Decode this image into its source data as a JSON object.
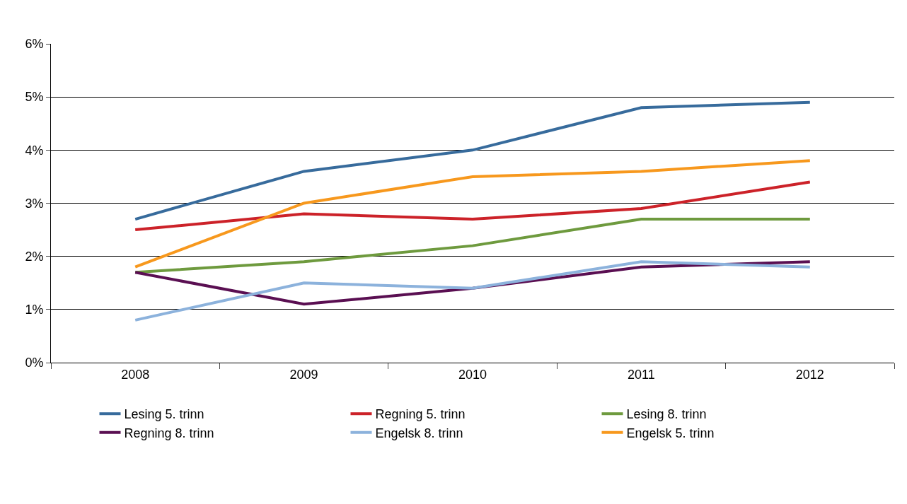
{
  "chart_data": {
    "type": "line",
    "categories": [
      "2008",
      "2009",
      "2010",
      "2011",
      "2012"
    ],
    "series": [
      {
        "name": "Lesing 5. trinn",
        "color": "#376b9c",
        "values": [
          2.7,
          3.6,
          4.0,
          4.8,
          4.9
        ]
      },
      {
        "name": "Regning 5. trinn",
        "color": "#cc2229",
        "values": [
          2.5,
          2.8,
          2.7,
          2.9,
          3.4
        ]
      },
      {
        "name": "Lesing 8. trinn",
        "color": "#6e9a3e",
        "values": [
          1.7,
          1.9,
          2.2,
          2.7,
          2.7
        ]
      },
      {
        "name": "Regning 8. trinn",
        "color": "#5a0f52",
        "values": [
          1.7,
          1.1,
          1.4,
          1.8,
          1.9
        ]
      },
      {
        "name": "Engelsk 8. trinn",
        "color": "#8cb2dc",
        "values": [
          0.8,
          1.5,
          1.4,
          1.9,
          1.8
        ]
      },
      {
        "name": "Engelsk 5. trinn",
        "color": "#f7981d",
        "values": [
          1.8,
          3.0,
          3.5,
          3.6,
          3.8
        ]
      }
    ],
    "ylim": [
      0,
      6
    ],
    "yticks": [
      {
        "value": 0,
        "label": "0%"
      },
      {
        "value": 1,
        "label": "1%"
      },
      {
        "value": 2,
        "label": "2%"
      },
      {
        "value": 3,
        "label": "3%"
      },
      {
        "value": 4,
        "label": "4%"
      },
      {
        "value": 5,
        "label": "5%"
      },
      {
        "value": 6,
        "label": "6%"
      }
    ],
    "grid": "y",
    "legend": "bottom",
    "marker": "none",
    "line_style": "solid"
  }
}
